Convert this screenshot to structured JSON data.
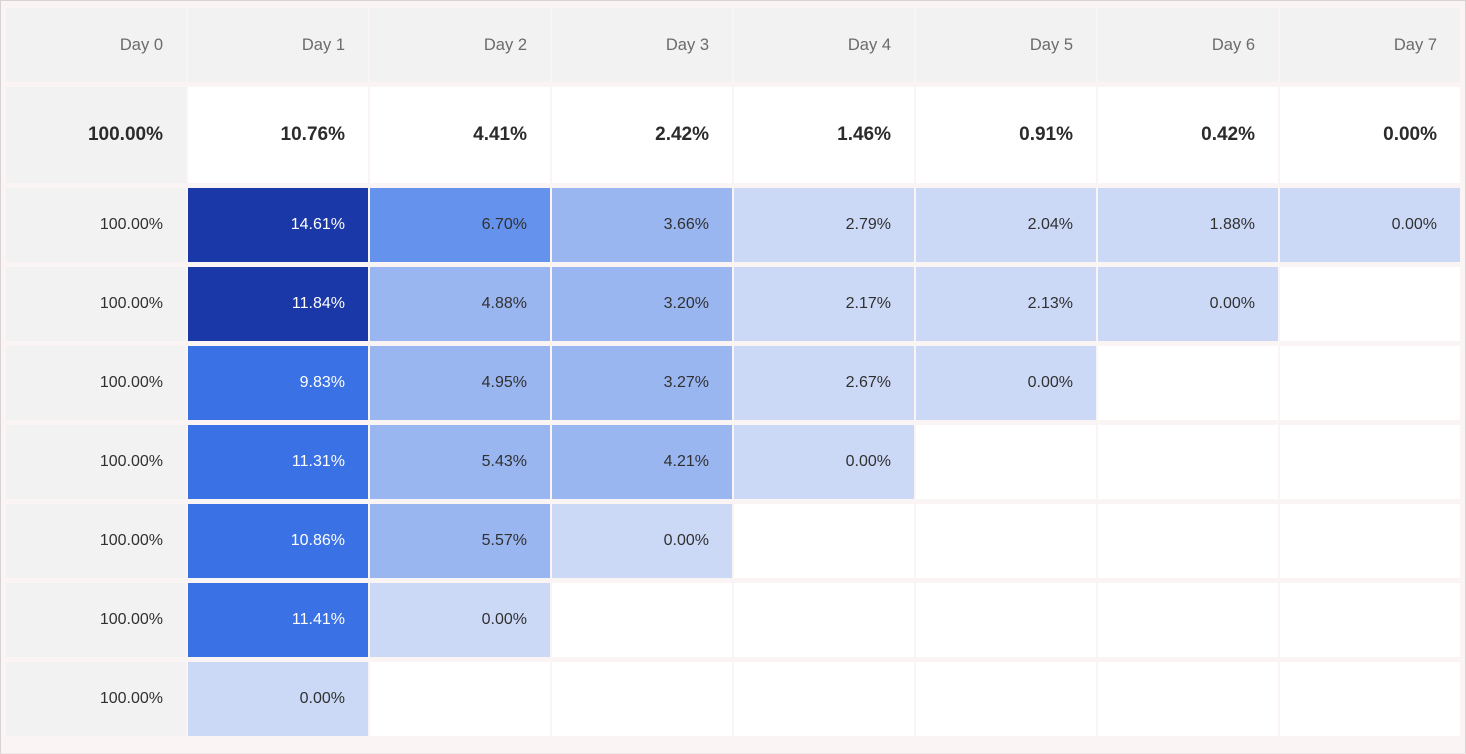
{
  "colors": {
    "header_bg": "#f2f2f2",
    "label_bg": "#f2f2f2",
    "grid_line": "#faf4f4",
    "header_text": "#6b6b6b",
    "dark_text": "#303030",
    "white_text": "#ffffff",
    "scale": {
      "s1": "#1a38a8",
      "s2": "#3a72e6",
      "s3": "#6492ec",
      "s4": "#9ab6f0",
      "s5": "#cbd9f7"
    }
  },
  "table": {
    "columns": [
      "Day 0",
      "Day 1",
      "Day 2",
      "Day 3",
      "Day 4",
      "Day 5",
      "Day 6",
      "Day 7"
    ],
    "mean_row": {
      "label": "100.00%",
      "values": [
        "10.76%",
        "4.41%",
        "2.42%",
        "1.46%",
        "0.91%",
        "0.42%",
        "0.00%"
      ]
    },
    "rows": [
      {
        "label": "100.00%",
        "cells": [
          {
            "text": "14.61%",
            "shade": "s1",
            "light_text": true
          },
          {
            "text": "6.70%",
            "shade": "s3",
            "light_text": false
          },
          {
            "text": "3.66%",
            "shade": "s4",
            "light_text": false
          },
          {
            "text": "2.79%",
            "shade": "s5",
            "light_text": false
          },
          {
            "text": "2.04%",
            "shade": "s5",
            "light_text": false
          },
          {
            "text": "1.88%",
            "shade": "s5",
            "light_text": false
          },
          {
            "text": "0.00%",
            "shade": "s5",
            "light_text": false
          }
        ]
      },
      {
        "label": "100.00%",
        "cells": [
          {
            "text": "11.84%",
            "shade": "s1",
            "light_text": true
          },
          {
            "text": "4.88%",
            "shade": "s4",
            "light_text": false
          },
          {
            "text": "3.20%",
            "shade": "s4",
            "light_text": false
          },
          {
            "text": "2.17%",
            "shade": "s5",
            "light_text": false
          },
          {
            "text": "2.13%",
            "shade": "s5",
            "light_text": false
          },
          {
            "text": "0.00%",
            "shade": "s5",
            "light_text": false
          }
        ]
      },
      {
        "label": "100.00%",
        "cells": [
          {
            "text": "9.83%",
            "shade": "s2",
            "light_text": true
          },
          {
            "text": "4.95%",
            "shade": "s4",
            "light_text": false
          },
          {
            "text": "3.27%",
            "shade": "s4",
            "light_text": false
          },
          {
            "text": "2.67%",
            "shade": "s5",
            "light_text": false
          },
          {
            "text": "0.00%",
            "shade": "s5",
            "light_text": false
          }
        ]
      },
      {
        "label": "100.00%",
        "cells": [
          {
            "text": "11.31%",
            "shade": "s2",
            "light_text": true
          },
          {
            "text": "5.43%",
            "shade": "s4",
            "light_text": false
          },
          {
            "text": "4.21%",
            "shade": "s4",
            "light_text": false
          },
          {
            "text": "0.00%",
            "shade": "s5",
            "light_text": false
          }
        ]
      },
      {
        "label": "100.00%",
        "cells": [
          {
            "text": "10.86%",
            "shade": "s2",
            "light_text": true
          },
          {
            "text": "5.57%",
            "shade": "s4",
            "light_text": false
          },
          {
            "text": "0.00%",
            "shade": "s5",
            "light_text": false
          }
        ]
      },
      {
        "label": "100.00%",
        "cells": [
          {
            "text": "11.41%",
            "shade": "s2",
            "light_text": true
          },
          {
            "text": "0.00%",
            "shade": "s5",
            "light_text": false
          }
        ]
      },
      {
        "label": "100.00%",
        "cells": [
          {
            "text": "0.00%",
            "shade": "s5",
            "light_text": false
          }
        ]
      }
    ]
  },
  "chart_data": {
    "type": "heatmap",
    "columns": [
      "Day 0",
      "Day 1",
      "Day 2",
      "Day 3",
      "Day 4",
      "Day 5",
      "Day 6",
      "Day 7"
    ],
    "mean": [
      100.0,
      10.76,
      4.41,
      2.42,
      1.46,
      0.91,
      0.42,
      0.0
    ],
    "cohorts": [
      [
        100.0,
        14.61,
        6.7,
        3.66,
        2.79,
        2.04,
        1.88,
        0.0
      ],
      [
        100.0,
        11.84,
        4.88,
        3.2,
        2.17,
        2.13,
        0.0,
        null
      ],
      [
        100.0,
        9.83,
        4.95,
        3.27,
        2.67,
        0.0,
        null,
        null
      ],
      [
        100.0,
        11.31,
        5.43,
        4.21,
        0.0,
        null,
        null,
        null
      ],
      [
        100.0,
        10.86,
        5.57,
        0.0,
        null,
        null,
        null,
        null
      ],
      [
        100.0,
        11.41,
        0.0,
        null,
        null,
        null,
        null,
        null
      ],
      [
        100.0,
        0.0,
        null,
        null,
        null,
        null,
        null,
        null
      ]
    ],
    "legend_position": "none",
    "grid": true,
    "value_format": "percent"
  }
}
